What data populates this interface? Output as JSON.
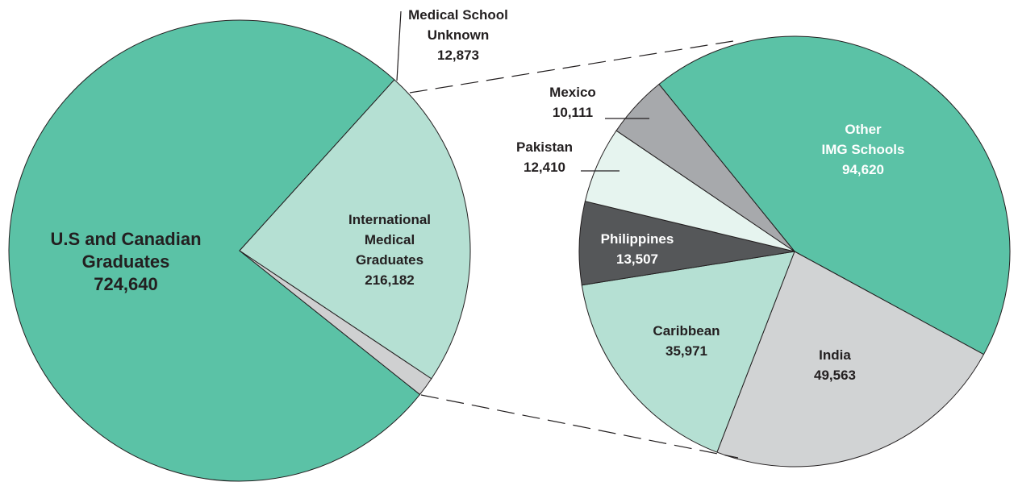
{
  "chart_data": [
    {
      "type": "pie",
      "categories": [
        "U.S and Canadian\nGraduates",
        "International\nMedical\nGraduates",
        "Medical School\nUnknown"
      ],
      "values": [
        724640,
        216182,
        12873
      ],
      "value_labels": [
        "724,640",
        "216,182",
        "12,873"
      ],
      "colors": [
        "#5bc2a6",
        "#b5e0d3",
        "#cfd0d1"
      ]
    },
    {
      "type": "pie",
      "categories": [
        "Other\nIMG Schools",
        "India",
        "Caribbean",
        "Philippines",
        "Pakistan",
        "Mexico"
      ],
      "values": [
        94620,
        49563,
        35971,
        13507,
        12410,
        10111
      ],
      "value_labels": [
        "94,620",
        "49,563",
        "35,971",
        "13,507",
        "12,410",
        "10,111"
      ],
      "colors": [
        "#5bc2a6",
        "#d1d3d4",
        "#b5e0d3",
        "#555759",
        "#e6f4ef",
        "#a7a9ac"
      ]
    }
  ]
}
